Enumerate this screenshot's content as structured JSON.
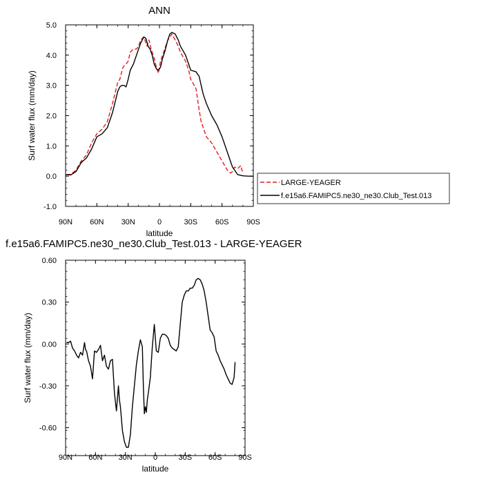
{
  "chart_data": [
    {
      "type": "line",
      "title": "ANN",
      "xlabel": "latitude",
      "ylabel": "Surf water flux (mm/day)",
      "xlim": [
        90,
        -90
      ],
      "ylim": [
        -1.0,
        5.0
      ],
      "xticks": [
        90,
        60,
        30,
        0,
        -30,
        -60,
        -90
      ],
      "xtick_labels": [
        "90N",
        "60N",
        "30N",
        "0",
        "30S",
        "60S",
        "90S"
      ],
      "yticks": [
        -1.0,
        0.0,
        1.0,
        2.0,
        3.0,
        4.0,
        5.0
      ],
      "ytick_labels": [
        "-1.0",
        "0.0",
        "1.0",
        "2.0",
        "3.0",
        "4.0",
        "5.0"
      ],
      "legend_position": "right",
      "series": [
        {
          "name": "LARGE-YEAGER",
          "color": "#e41a1c",
          "dash": "dashed",
          "x": [
            89,
            85,
            80,
            75,
            70,
            65,
            60,
            55,
            50,
            45,
            40,
            38,
            35,
            32,
            30,
            28,
            25,
            22,
            20,
            18,
            15,
            12,
            10,
            8,
            5,
            3,
            1,
            -1,
            -3,
            -5,
            -8,
            -10,
            -12,
            -15,
            -18,
            -20,
            -25,
            -28,
            -30,
            -35,
            -38,
            -40,
            -45,
            -50,
            -55,
            -60,
            -65,
            -68,
            -70,
            -72,
            -75,
            -78,
            -79,
            -80
          ],
          "y": [
            0.05,
            0.06,
            0.2,
            0.5,
            0.7,
            1.1,
            1.4,
            1.55,
            1.8,
            2.4,
            3.1,
            3.2,
            3.6,
            3.7,
            3.8,
            4.1,
            4.2,
            4.2,
            4.3,
            4.5,
            4.6,
            4.3,
            4.5,
            4.2,
            3.9,
            3.6,
            3.4,
            3.8,
            4.0,
            4.2,
            4.5,
            4.6,
            4.7,
            4.5,
            4.3,
            4.1,
            3.8,
            3.5,
            3.2,
            2.9,
            2.2,
            1.8,
            1.3,
            1.1,
            0.8,
            0.5,
            0.2,
            0.1,
            0.15,
            0.3,
            0.25,
            0.35,
            0.2,
            0.15
          ]
        },
        {
          "name": "f.e15a6.FAMIPC5.ne30_ne30.Club_Test.013",
          "color": "#000000",
          "dash": "solid",
          "x": [
            90,
            85,
            80,
            75,
            70,
            65,
            60,
            55,
            50,
            45,
            40,
            38,
            36,
            34,
            32,
            30,
            28,
            25,
            22,
            20,
            18,
            15,
            13,
            11,
            9,
            7,
            5,
            3,
            1,
            -1,
            -3,
            -5,
            -8,
            -10,
            -12,
            -15,
            -18,
            -20,
            -25,
            -28,
            -30,
            -35,
            -38,
            -40,
            -42,
            -45,
            -50,
            -55,
            -60,
            -65,
            -70,
            -75,
            -80,
            -85,
            -90
          ],
          "y": [
            0.05,
            0.04,
            0.15,
            0.45,
            0.6,
            0.9,
            1.3,
            1.4,
            1.6,
            2.1,
            2.8,
            2.95,
            3.0,
            3.0,
            2.95,
            3.2,
            3.5,
            3.7,
            4.0,
            4.2,
            4.4,
            4.6,
            4.55,
            4.3,
            4.2,
            4.0,
            3.7,
            3.55,
            3.5,
            3.6,
            3.9,
            4.1,
            4.5,
            4.7,
            4.75,
            4.7,
            4.5,
            4.3,
            4.0,
            3.7,
            3.5,
            3.45,
            3.3,
            3.0,
            2.7,
            2.4,
            2.0,
            1.7,
            1.3,
            0.8,
            0.3,
            0.05,
            0.01,
            0.0,
            0.0
          ]
        }
      ]
    },
    {
      "type": "line",
      "title": "f.e15a6.FAMIPC5.ne30_ne30.Club_Test.013 - LARGE-YEAGER",
      "xlabel": "latitude",
      "ylabel": "Surf water flux (mm/day)",
      "xlim": [
        90,
        -90
      ],
      "ylim": [
        -0.8,
        0.6
      ],
      "xticks": [
        90,
        60,
        30,
        0,
        -30,
        -60,
        -90
      ],
      "xtick_labels": [
        "90N",
        "60N",
        "30N",
        "0",
        "30S",
        "60S",
        "90S"
      ],
      "yticks": [
        -0.6,
        -0.3,
        0.0,
        0.3,
        0.6
      ],
      "ytick_labels": [
        "-0.60",
        "-0.30",
        "0.00",
        "0.30",
        "0.60"
      ],
      "series": [
        {
          "color": "#000000",
          "dash": "solid",
          "x": [
            89,
            87,
            85,
            83,
            81,
            79,
            77,
            75,
            73,
            71,
            70,
            69,
            67,
            65,
            63,
            61,
            59,
            57,
            55,
            53,
            51,
            49,
            47,
            45,
            43,
            41,
            39,
            37,
            36,
            35,
            33,
            31,
            29,
            27,
            25,
            23,
            21,
            19,
            17,
            15,
            13,
            12,
            11,
            10,
            9,
            8,
            7,
            5,
            3,
            1,
            -1,
            -3,
            -5,
            -7,
            -9,
            -11,
            -13,
            -15,
            -17,
            -19,
            -21,
            -23,
            -25,
            -27,
            -29,
            -31,
            -33,
            -35,
            -37,
            -39,
            -41,
            -43,
            -45,
            -47,
            -49,
            -51,
            -53,
            -55,
            -57,
            -59,
            -61,
            -63,
            -65,
            -67,
            -69,
            -71,
            -73,
            -75,
            -77,
            -79,
            -80
          ],
          "y": [
            0.01,
            0.01,
            0.02,
            -0.03,
            -0.05,
            -0.08,
            -0.1,
            -0.06,
            -0.08,
            0.01,
            -0.04,
            -0.05,
            -0.12,
            -0.16,
            -0.25,
            -0.05,
            -0.06,
            -0.04,
            -0.01,
            -0.12,
            -0.08,
            -0.16,
            -0.18,
            -0.12,
            -0.11,
            -0.35,
            -0.48,
            -0.3,
            -0.4,
            -0.45,
            -0.62,
            -0.7,
            -0.74,
            -0.74,
            -0.65,
            -0.45,
            -0.3,
            -0.15,
            -0.05,
            0.03,
            -0.02,
            -0.3,
            -0.5,
            -0.45,
            -0.49,
            -0.4,
            -0.35,
            -0.24,
            -0.02,
            0.14,
            -0.05,
            -0.06,
            0.04,
            0.07,
            0.07,
            0.06,
            0.04,
            -0.01,
            -0.03,
            -0.04,
            -0.05,
            -0.02,
            0.14,
            0.3,
            0.35,
            0.38,
            0.38,
            0.4,
            0.4,
            0.42,
            0.46,
            0.47,
            0.46,
            0.43,
            0.38,
            0.3,
            0.2,
            0.1,
            0.08,
            0.05,
            -0.05,
            -0.08,
            -0.12,
            -0.15,
            -0.18,
            -0.22,
            -0.25,
            -0.28,
            -0.29,
            -0.24,
            -0.13
          ]
        }
      ]
    }
  ]
}
